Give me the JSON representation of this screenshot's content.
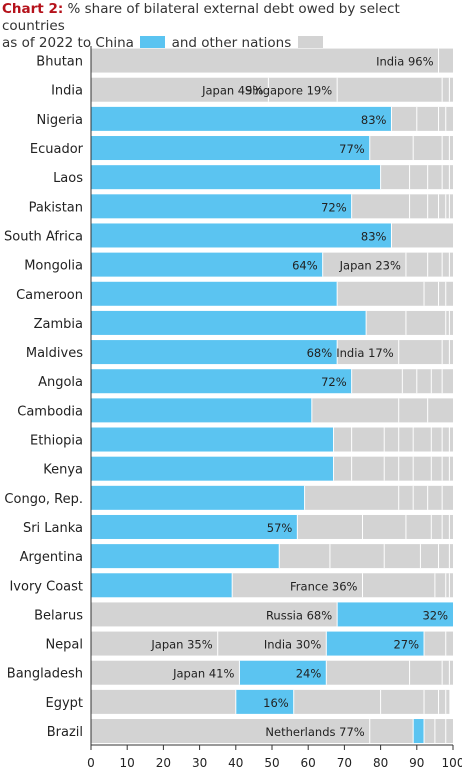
{
  "header": {
    "lead": "Chart 2:",
    "line1": "% share of bilateral external debt owed by select countries",
    "line2a": "as of  2022 to China",
    "line2b": "and other nations"
  },
  "colors": {
    "china": "#5bc4f1",
    "other": "#d3d3d3",
    "divider": "#ffffff",
    "axis": "#333333"
  },
  "chart_data": {
    "type": "bar",
    "orientation": "horizontal",
    "stacked": true,
    "xlim": [
      0,
      100
    ],
    "xticks": [
      0,
      10,
      20,
      30,
      40,
      50,
      60,
      70,
      80,
      90,
      100
    ],
    "legend": [
      "China",
      "other nations"
    ],
    "rows": [
      {
        "country": "Bhutan",
        "segments": [
          {
            "v": 96,
            "c": "other",
            "label": "India 96%"
          },
          {
            "v": 4,
            "c": "other"
          }
        ]
      },
      {
        "country": "India",
        "segments": [
          {
            "v": 49,
            "c": "other",
            "label": "Japan 49%"
          },
          {
            "v": 19,
            "c": "other",
            "label": "Singapore 19%"
          },
          {
            "v": 29,
            "c": "other"
          },
          {
            "v": 2,
            "c": "other"
          },
          {
            "v": 1,
            "c": "other"
          }
        ]
      },
      {
        "country": "Nigeria",
        "segments": [
          {
            "v": 83,
            "c": "china",
            "label": "83%"
          },
          {
            "v": 7,
            "c": "other"
          },
          {
            "v": 6,
            "c": "other"
          },
          {
            "v": 2,
            "c": "other"
          },
          {
            "v": 2,
            "c": "other"
          }
        ]
      },
      {
        "country": "Ecuador",
        "segments": [
          {
            "v": 77,
            "c": "china",
            "label": "77%"
          },
          {
            "v": 12,
            "c": "other"
          },
          {
            "v": 8,
            "c": "other"
          },
          {
            "v": 2,
            "c": "other"
          },
          {
            "v": 1,
            "c": "other"
          }
        ]
      },
      {
        "country": "Laos",
        "segments": [
          {
            "v": 80,
            "c": "china"
          },
          {
            "v": 8,
            "c": "other"
          },
          {
            "v": 5,
            "c": "other"
          },
          {
            "v": 4,
            "c": "other"
          },
          {
            "v": 2,
            "c": "other"
          },
          {
            "v": 1,
            "c": "other"
          }
        ]
      },
      {
        "country": "Pakistan",
        "segments": [
          {
            "v": 72,
            "c": "china",
            "label": "72%"
          },
          {
            "v": 16,
            "c": "other"
          },
          {
            "v": 5,
            "c": "other"
          },
          {
            "v": 3,
            "c": "other"
          },
          {
            "v": 2,
            "c": "other"
          },
          {
            "v": 1,
            "c": "other"
          },
          {
            "v": 1,
            "c": "other"
          }
        ]
      },
      {
        "country": "South Africa",
        "segments": [
          {
            "v": 83,
            "c": "china",
            "label": "83%"
          },
          {
            "v": 17,
            "c": "other"
          }
        ]
      },
      {
        "country": "Mongolia",
        "segments": [
          {
            "v": 64,
            "c": "china",
            "label": "64%"
          },
          {
            "v": 23,
            "c": "other",
            "label": "Japan 23%"
          },
          {
            "v": 6,
            "c": "other"
          },
          {
            "v": 4,
            "c": "other"
          },
          {
            "v": 2,
            "c": "other"
          },
          {
            "v": 1,
            "c": "other"
          }
        ]
      },
      {
        "country": "Cameroon",
        "segments": [
          {
            "v": 68,
            "c": "china"
          },
          {
            "v": 24,
            "c": "other"
          },
          {
            "v": 4,
            "c": "other"
          },
          {
            "v": 2,
            "c": "other"
          },
          {
            "v": 2,
            "c": "other"
          }
        ]
      },
      {
        "country": "Zambia",
        "segments": [
          {
            "v": 76,
            "c": "china"
          },
          {
            "v": 11,
            "c": "other"
          },
          {
            "v": 11,
            "c": "other"
          },
          {
            "v": 1,
            "c": "other"
          },
          {
            "v": 1,
            "c": "other"
          }
        ]
      },
      {
        "country": "Maldives",
        "segments": [
          {
            "v": 68,
            "c": "china",
            "label": "68%"
          },
          {
            "v": 17,
            "c": "other",
            "label": "India 17%"
          },
          {
            "v": 12,
            "c": "other"
          },
          {
            "v": 2,
            "c": "other"
          },
          {
            "v": 1,
            "c": "other"
          }
        ]
      },
      {
        "country": "Angola",
        "segments": [
          {
            "v": 72,
            "c": "china",
            "label": "72%"
          },
          {
            "v": 14,
            "c": "other"
          },
          {
            "v": 4,
            "c": "other"
          },
          {
            "v": 4,
            "c": "other"
          },
          {
            "v": 3,
            "c": "other"
          },
          {
            "v": 3,
            "c": "other"
          }
        ]
      },
      {
        "country": "Cambodia",
        "segments": [
          {
            "v": 61,
            "c": "china"
          },
          {
            "v": 24,
            "c": "other"
          },
          {
            "v": 8,
            "c": "other"
          },
          {
            "v": 7,
            "c": "other"
          }
        ]
      },
      {
        "country": "Ethiopia",
        "segments": [
          {
            "v": 67,
            "c": "china"
          },
          {
            "v": 5,
            "c": "other"
          },
          {
            "v": 9,
            "c": "other"
          },
          {
            "v": 4,
            "c": "other"
          },
          {
            "v": 4,
            "c": "other"
          },
          {
            "v": 5,
            "c": "other"
          },
          {
            "v": 3,
            "c": "other"
          },
          {
            "v": 2,
            "c": "other"
          },
          {
            "v": 1,
            "c": "other"
          }
        ]
      },
      {
        "country": "Kenya",
        "segments": [
          {
            "v": 67,
            "c": "china"
          },
          {
            "v": 5,
            "c": "other"
          },
          {
            "v": 9,
            "c": "other"
          },
          {
            "v": 4,
            "c": "other"
          },
          {
            "v": 4,
            "c": "other"
          },
          {
            "v": 5,
            "c": "other"
          },
          {
            "v": 3,
            "c": "other"
          },
          {
            "v": 2,
            "c": "other"
          },
          {
            "v": 1,
            "c": "other"
          }
        ]
      },
      {
        "country": "Congo, Rep.",
        "segments": [
          {
            "v": 59,
            "c": "china"
          },
          {
            "v": 26,
            "c": "other"
          },
          {
            "v": 4,
            "c": "other"
          },
          {
            "v": 4,
            "c": "other"
          },
          {
            "v": 4,
            "c": "other"
          },
          {
            "v": 3,
            "c": "other"
          }
        ]
      },
      {
        "country": "Sri Lanka",
        "segments": [
          {
            "v": 57,
            "c": "china",
            "label": "57%"
          },
          {
            "v": 18,
            "c": "other"
          },
          {
            "v": 12,
            "c": "other"
          },
          {
            "v": 7,
            "c": "other"
          },
          {
            "v": 3,
            "c": "other"
          },
          {
            "v": 2,
            "c": "other"
          },
          {
            "v": 1,
            "c": "other"
          }
        ]
      },
      {
        "country": "Argentina",
        "segments": [
          {
            "v": 52,
            "c": "china"
          },
          {
            "v": 14,
            "c": "other"
          },
          {
            "v": 15,
            "c": "other"
          },
          {
            "v": 10,
            "c": "other"
          },
          {
            "v": 5,
            "c": "other"
          },
          {
            "v": 3,
            "c": "other"
          },
          {
            "v": 1,
            "c": "other"
          }
        ]
      },
      {
        "country": "Ivory Coast",
        "segments": [
          {
            "v": 39,
            "c": "china"
          },
          {
            "v": 36,
            "c": "other",
            "label": "France 36%"
          },
          {
            "v": 20,
            "c": "other"
          },
          {
            "v": 3,
            "c": "other"
          },
          {
            "v": 1,
            "c": "other"
          },
          {
            "v": 1,
            "c": "other"
          }
        ]
      },
      {
        "country": "Belarus",
        "segments": [
          {
            "v": 68,
            "c": "other",
            "label": "Russia 68%"
          },
          {
            "v": 32,
            "c": "china",
            "label": "32%"
          }
        ]
      },
      {
        "country": "Nepal",
        "segments": [
          {
            "v": 35,
            "c": "other",
            "label": "Japan 35%"
          },
          {
            "v": 30,
            "c": "other",
            "label": "India 30%"
          },
          {
            "v": 27,
            "c": "china",
            "label": "27%"
          },
          {
            "v": 6,
            "c": "other"
          },
          {
            "v": 2,
            "c": "other"
          }
        ]
      },
      {
        "country": "Bangladesh",
        "segments": [
          {
            "v": 41,
            "c": "other",
            "label": "Japan 41%"
          },
          {
            "v": 24,
            "c": "china",
            "label": "24%"
          },
          {
            "v": 23,
            "c": "other"
          },
          {
            "v": 9,
            "c": "other"
          },
          {
            "v": 2,
            "c": "other"
          },
          {
            "v": 1,
            "c": "other"
          }
        ]
      },
      {
        "country": "Egypt",
        "segments": [
          {
            "v": 40,
            "c": "other"
          },
          {
            "v": 16,
            "c": "china",
            "label": "16%"
          },
          {
            "v": 24,
            "c": "other"
          },
          {
            "v": 12,
            "c": "other"
          },
          {
            "v": 4,
            "c": "other"
          },
          {
            "v": 2,
            "c": "other"
          },
          {
            "v": 1,
            "c": "other"
          }
        ]
      },
      {
        "country": "Brazil",
        "segments": [
          {
            "v": 77,
            "c": "other",
            "label": "Netherlands 77%"
          },
          {
            "v": 12,
            "c": "other"
          },
          {
            "v": 3,
            "c": "china"
          },
          {
            "v": 3,
            "c": "other"
          },
          {
            "v": 3,
            "c": "other"
          },
          {
            "v": 2,
            "c": "other"
          }
        ]
      }
    ]
  }
}
